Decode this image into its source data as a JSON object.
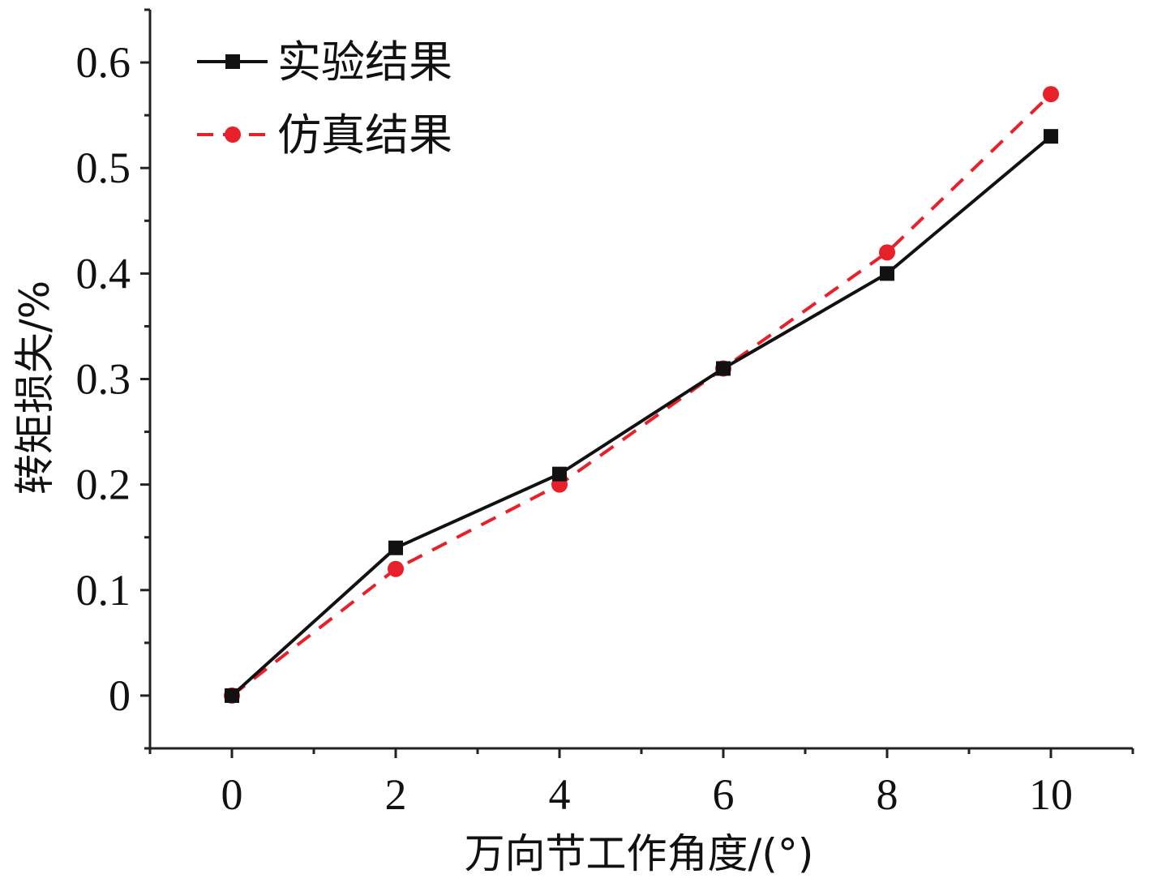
{
  "chart_data": {
    "type": "line",
    "title": "",
    "xlabel": "万向节工作角度/(°)",
    "ylabel": "转矩损失/%",
    "x": [
      0,
      2,
      4,
      6,
      8,
      10
    ],
    "xlim": [
      -1,
      11
    ],
    "ylim": [
      -0.05,
      0.65
    ],
    "x_ticks": [
      "0",
      "2",
      "4",
      "6",
      "8",
      "10"
    ],
    "y_ticks": [
      "0",
      "0.1",
      "0.2",
      "0.3",
      "0.4",
      "0.5",
      "0.6"
    ],
    "grid": false,
    "legend_position": "top-left",
    "series": [
      {
        "name": "实验结果",
        "values": [
          0,
          0.14,
          0.21,
          0.31,
          0.4,
          0.53
        ],
        "color": "#111111",
        "line_style": "solid",
        "marker": "square"
      },
      {
        "name": "仿真结果",
        "values": [
          0,
          0.12,
          0.2,
          0.31,
          0.42,
          0.57
        ],
        "color": "#e8202a",
        "line_style": "dashed",
        "marker": "circle"
      }
    ]
  }
}
